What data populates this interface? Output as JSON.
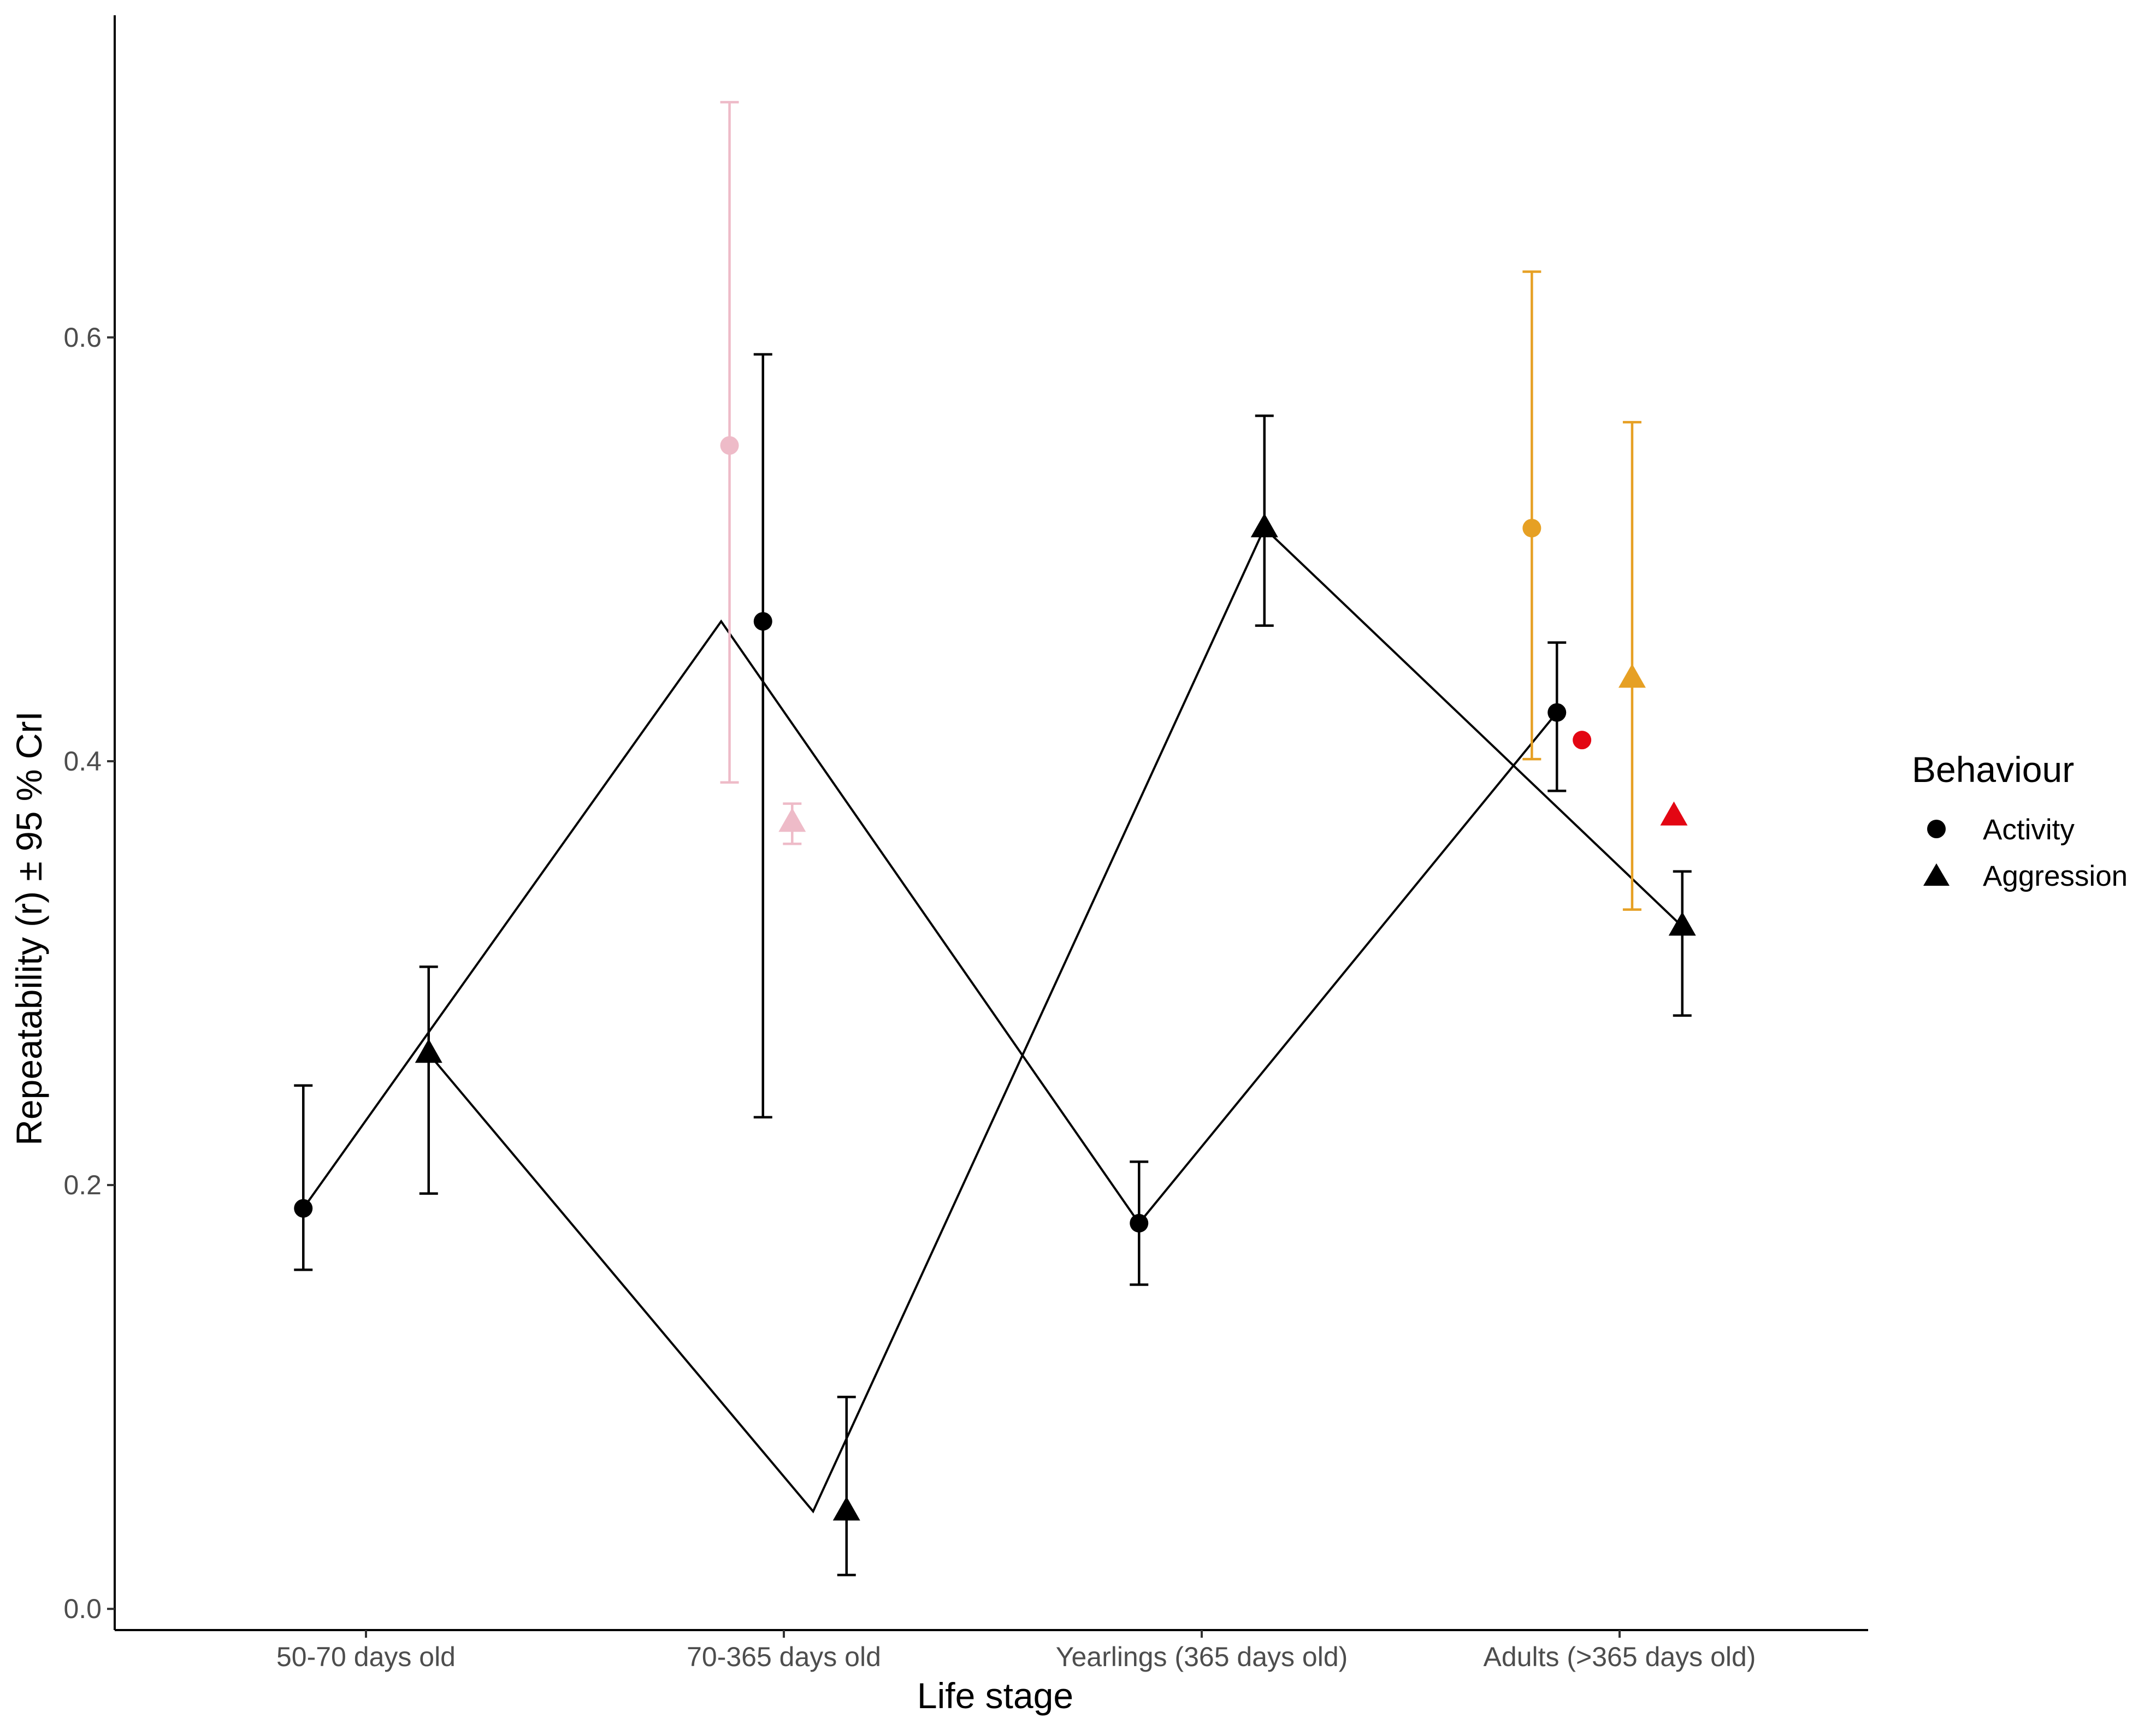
{
  "chart_data": {
    "type": "scatter",
    "xlabel": "Life stage",
    "ylabel": "Repeatability (r) ± 95 % CrI",
    "categories": [
      "50-70 days old",
      "70-365 days old",
      "Yearlings (365 days old)",
      "Adults (>365 days old)"
    ],
    "ylim": [
      -0.01,
      0.752
    ],
    "yticks": [
      0.0,
      0.2,
      0.4,
      0.6
    ],
    "ytick_labels": [
      "0.0",
      "0.2",
      "0.4",
      "0.6"
    ],
    "grid": false,
    "legend": {
      "title": "Behaviour",
      "position": "right",
      "entries": [
        {
          "label": "Activity",
          "shape": "circle"
        },
        {
          "label": "Aggression",
          "shape": "triangle"
        }
      ]
    },
    "colors": {
      "black": "#000000",
      "pink": "#eebbc8",
      "orange": "#e6a024",
      "red": "#e30613"
    },
    "series": [
      {
        "behaviour": "Activity",
        "shape": "circle",
        "color": "#000000",
        "connected": true,
        "points": [
          {
            "category": 0,
            "dodge": -0.15,
            "value": 0.189,
            "lower": 0.16,
            "upper": 0.247
          },
          {
            "category": 1,
            "dodge": -0.05,
            "value": 0.466,
            "lower": 0.232,
            "upper": 0.592
          },
          {
            "category": 2,
            "dodge": -0.15,
            "value": 0.182,
            "lower": 0.153,
            "upper": 0.211
          },
          {
            "category": 3,
            "dodge": -0.15,
            "value": 0.423,
            "lower": 0.386,
            "upper": 0.456
          }
        ],
        "line_x_overrides": {
          "1": -0.15
        }
      },
      {
        "behaviour": "Aggression",
        "shape": "triangle",
        "color": "#000000",
        "connected": true,
        "points": [
          {
            "category": 0,
            "dodge": 0.15,
            "value": 0.262,
            "lower": 0.196,
            "upper": 0.303
          },
          {
            "category": 1,
            "dodge": 0.15,
            "value": 0.046,
            "lower": 0.016,
            "upper": 0.1
          },
          {
            "category": 2,
            "dodge": 0.15,
            "value": 0.51,
            "lower": 0.464,
            "upper": 0.563
          },
          {
            "category": 3,
            "dodge": 0.15,
            "value": 0.322,
            "lower": 0.28,
            "upper": 0.348
          }
        ],
        "line_x_overrides": {
          "1": 0.07
        }
      },
      {
        "behaviour": "Activity",
        "shape": "circle",
        "color": "#eebbc8",
        "connected": false,
        "points": [
          {
            "category": 1,
            "dodge": -0.13,
            "value": 0.549,
            "lower": 0.39,
            "upper": 0.711
          }
        ]
      },
      {
        "behaviour": "Aggression",
        "shape": "triangle",
        "color": "#eebbc8",
        "connected": false,
        "points": [
          {
            "category": 1,
            "dodge": 0.02,
            "value": 0.371,
            "lower": 0.361,
            "upper": 0.38
          }
        ]
      },
      {
        "behaviour": "Activity",
        "shape": "circle",
        "color": "#e6a024",
        "connected": false,
        "points": [
          {
            "category": 3,
            "dodge": -0.21,
            "value": 0.51,
            "lower": 0.401,
            "upper": 0.631
          }
        ]
      },
      {
        "behaviour": "Aggression",
        "shape": "triangle",
        "color": "#e6a024",
        "connected": false,
        "points": [
          {
            "category": 3,
            "dodge": 0.03,
            "value": 0.439,
            "lower": 0.33,
            "upper": 0.56
          }
        ]
      },
      {
        "behaviour": "Activity",
        "shape": "circle",
        "color": "#e30613",
        "connected": false,
        "points": [
          {
            "category": 3,
            "dodge": -0.09,
            "value": 0.41
          }
        ]
      },
      {
        "behaviour": "Aggression",
        "shape": "triangle",
        "color": "#e30613",
        "connected": false,
        "points": [
          {
            "category": 3,
            "dodge": 0.13,
            "value": 0.374
          }
        ]
      }
    ]
  }
}
